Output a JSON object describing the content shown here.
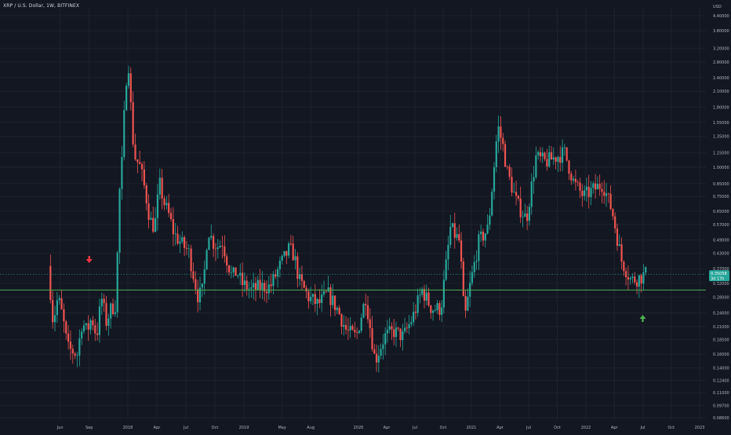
{
  "header": {
    "symbol_title": "XRP / U.S. Dollar, 1W, BITFINEX",
    "currency_label": "USD"
  },
  "chart_data": {
    "type": "candlestick",
    "title": "XRP / U.S. Dollar, 1W, BITFINEX",
    "yscale": "log",
    "ylabel": "USD",
    "ylim": [
      0.08,
      4.6
    ],
    "y_tick_labels": [
      "4.40000",
      "3.80000",
      "3.20000",
      "2.80000",
      "2.40000",
      "2.10000",
      "1.80000",
      "1.55000",
      "1.35000",
      "1.15000",
      "1.00000",
      "0.85000",
      "0.75000",
      "0.65000",
      "0.57000",
      "0.49000",
      "0.43000",
      "0.37000",
      "0.32000",
      "0.28000",
      "0.24000",
      "0.21000",
      "0.18500",
      "0.16000",
      "0.14000",
      "0.12400",
      "0.11000",
      "0.09700",
      "0.08600"
    ],
    "x_tick_labels": [
      "Jun",
      "Sep",
      "2018",
      "Apr",
      "Jul",
      "Oct",
      "2019",
      "May",
      "Aug",
      "2020",
      "Apr",
      "Jul",
      "Oct",
      "2021",
      "Apr",
      "Jul",
      "Oct",
      "2022",
      "Apr",
      "Jul",
      "Oct",
      "2023"
    ],
    "x_range": [
      "2017-04",
      "2023-01"
    ],
    "grid": true,
    "current_price": {
      "value": 0.35058,
      "value_label": "0.35058",
      "countdown_label": "3d 17h"
    },
    "horizontal_line": {
      "value": 0.3,
      "color": "#4caf50"
    },
    "annotations": [
      {
        "type": "arrow-down",
        "date": "2017-09",
        "value": 0.4,
        "color": "#f23645"
      },
      {
        "type": "arrow-up",
        "date": "2022-07",
        "value": 0.23,
        "color": "#4caf50"
      }
    ],
    "colors": {
      "up": "#26a69a",
      "down": "#ef5350",
      "background": "#131722",
      "grid": "#1e222d"
    },
    "price_path": [
      [
        "2017-05",
        0.38
      ],
      [
        "2017-05",
        0.22
      ],
      [
        "2017-06",
        0.28
      ],
      [
        "2017-06",
        0.23
      ],
      [
        "2017-07",
        0.17
      ],
      [
        "2017-08",
        0.16
      ],
      [
        "2017-08",
        0.22
      ],
      [
        "2017-09",
        0.2
      ],
      [
        "2017-09",
        0.23
      ],
      [
        "2017-10",
        0.19
      ],
      [
        "2017-10",
        0.28
      ],
      [
        "2017-11",
        0.22
      ],
      [
        "2017-11",
        0.25
      ],
      [
        "2017-12",
        0.26
      ],
      [
        "2017-12",
        0.75
      ],
      [
        "2017-12",
        1.1
      ],
      [
        "2018-01",
        2.3
      ],
      [
        "2018-01",
        2.75
      ],
      [
        "2018-01",
        1.4
      ],
      [
        "2018-02",
        1.1
      ],
      [
        "2018-02",
        1.0
      ],
      [
        "2018-03",
        0.8
      ],
      [
        "2018-03",
        0.6
      ],
      [
        "2018-04",
        0.55
      ],
      [
        "2018-04",
        0.85
      ],
      [
        "2018-05",
        0.7
      ],
      [
        "2018-05",
        0.62
      ],
      [
        "2018-06",
        0.52
      ],
      [
        "2018-07",
        0.46
      ],
      [
        "2018-07",
        0.44
      ],
      [
        "2018-08",
        0.35
      ],
      [
        "2018-08",
        0.28
      ],
      [
        "2018-09",
        0.3
      ],
      [
        "2018-09",
        0.55
      ],
      [
        "2018-10",
        0.48
      ],
      [
        "2018-10",
        0.46
      ],
      [
        "2018-11",
        0.48
      ],
      [
        "2018-11",
        0.4
      ],
      [
        "2018-12",
        0.34
      ],
      [
        "2018-12",
        0.36
      ],
      [
        "2019-01",
        0.32
      ],
      [
        "2019-02",
        0.3
      ],
      [
        "2019-03",
        0.31
      ],
      [
        "2019-04",
        0.31
      ],
      [
        "2019-05",
        0.38
      ],
      [
        "2019-06",
        0.45
      ],
      [
        "2019-06",
        0.42
      ],
      [
        "2019-07",
        0.33
      ],
      [
        "2019-08",
        0.28
      ],
      [
        "2019-09",
        0.26
      ],
      [
        "2019-10",
        0.29
      ],
      [
        "2019-11",
        0.25
      ],
      [
        "2019-12",
        0.2
      ],
      [
        "2020-01",
        0.19
      ],
      [
        "2020-02",
        0.28
      ],
      [
        "2020-03",
        0.15
      ],
      [
        "2020-04",
        0.19
      ],
      [
        "2020-05",
        0.2
      ],
      [
        "2020-06",
        0.19
      ],
      [
        "2020-07",
        0.23
      ],
      [
        "2020-08",
        0.3
      ],
      [
        "2020-09",
        0.25
      ],
      [
        "2020-10",
        0.25
      ],
      [
        "2020-11",
        0.55
      ],
      [
        "2020-12",
        0.48
      ],
      [
        "2020-12",
        0.22
      ],
      [
        "2021-01",
        0.3
      ],
      [
        "2021-02",
        0.48
      ],
      [
        "2021-03",
        0.55
      ],
      [
        "2021-04",
        1.5
      ],
      [
        "2021-04",
        1.25
      ],
      [
        "2021-05",
        0.95
      ],
      [
        "2021-06",
        0.7
      ],
      [
        "2021-07",
        0.6
      ],
      [
        "2021-08",
        1.1
      ],
      [
        "2021-09",
        1.05
      ],
      [
        "2021-10",
        1.1
      ],
      [
        "2021-11",
        1.15
      ],
      [
        "2021-12",
        0.85
      ],
      [
        "2022-01",
        0.75
      ],
      [
        "2022-02",
        0.8
      ],
      [
        "2022-03",
        0.85
      ],
      [
        "2022-04",
        0.65
      ],
      [
        "2022-05",
        0.4
      ],
      [
        "2022-06",
        0.33
      ],
      [
        "2022-07",
        0.34
      ],
      [
        "2022-07",
        0.35
      ]
    ]
  }
}
